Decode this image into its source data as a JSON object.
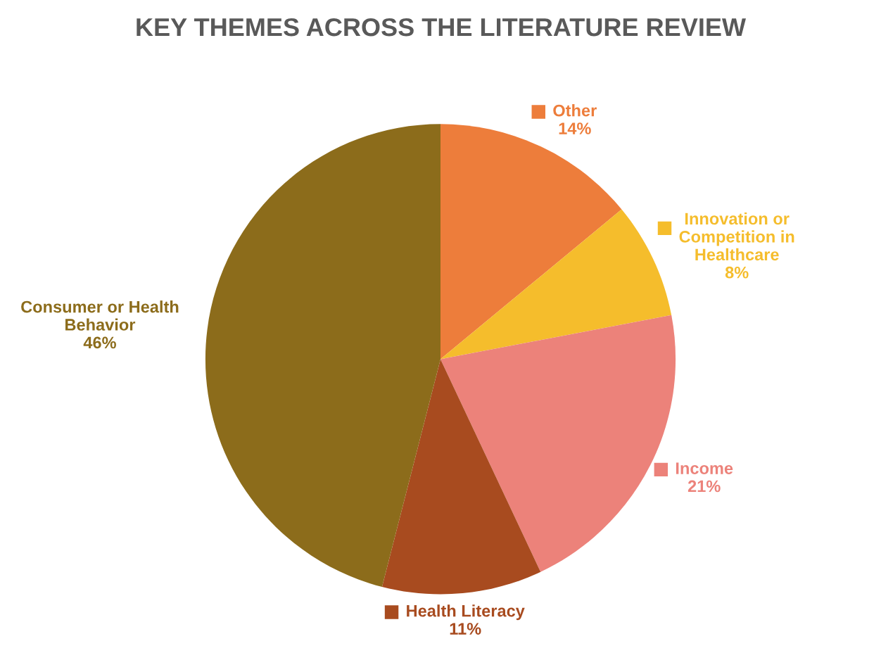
{
  "chart_data": {
    "type": "pie",
    "title": "KEY THEMES ACROSS THE LITERATURE REVIEW",
    "categories": [
      "Other",
      "Innovation or\nCompetition in\nHealthcare",
      "Income",
      "Health Literacy",
      "Consumer or Health\nBehavior"
    ],
    "values": [
      14,
      8,
      21,
      11,
      46
    ],
    "value_labels": [
      "14%",
      "8%",
      "21%",
      "11%",
      "46%"
    ],
    "colors": [
      "#ed7d3b",
      "#f5bd2c",
      "#ec827a",
      "#a84b1f",
      "#8c6c1b"
    ],
    "legend": "right"
  }
}
